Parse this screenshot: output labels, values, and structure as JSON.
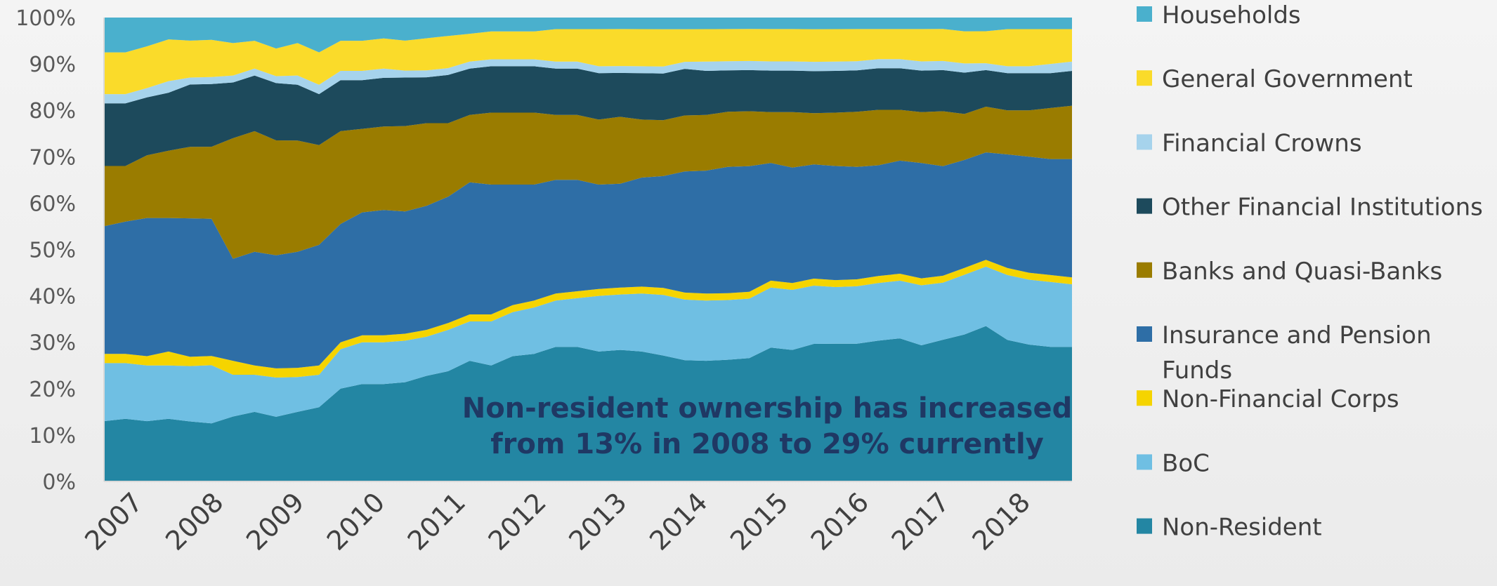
{
  "chart_data": {
    "type": "area",
    "stacked": true,
    "percent": true,
    "x_labels": [
      "2007",
      "2008",
      "2009",
      "2010",
      "2011",
      "2012",
      "2013",
      "2014",
      "2015",
      "2016",
      "2017",
      "2018"
    ],
    "y_ticks": [
      "0%",
      "10%",
      "20%",
      "30%",
      "40%",
      "50%",
      "60%",
      "70%",
      "80%",
      "90%",
      "100%"
    ],
    "ylim": [
      0,
      100
    ],
    "annotation": [
      "Non-resident ownership has increased",
      "from 13% in 2008 to 29% currently"
    ],
    "series": [
      {
        "name": "Non-Resident",
        "color": "#2386a3",
        "values": [
          13,
          13.5,
          13,
          13.5,
          13,
          12.5,
          14,
          15,
          14,
          15,
          16,
          20,
          21,
          21,
          21.5,
          23,
          24,
          26,
          25,
          27,
          27.5,
          29,
          29,
          28,
          28.5,
          28,
          27,
          26,
          26,
          26.5,
          27,
          29,
          28.5,
          29.5,
          29.7,
          30,
          30.5,
          31,
          29.5,
          31,
          32,
          34,
          30.5,
          29.5,
          29,
          29
        ]
      },
      {
        "name": "BoC",
        "color": "#6fbfe3",
        "values": [
          12.5,
          12,
          12,
          11.5,
          12,
          12.5,
          9,
          8,
          8.5,
          7.5,
          7,
          8.5,
          9,
          9,
          9,
          8.5,
          9,
          8.5,
          9.5,
          9.5,
          10,
          10,
          10.5,
          12,
          12,
          12.5,
          13,
          13,
          13,
          13,
          13,
          13,
          13,
          12.5,
          12.2,
          12.5,
          12.5,
          12.5,
          13,
          12.5,
          13,
          13,
          14,
          14,
          14,
          13.5
        ]
      },
      {
        "name": "Non-Financial Corps",
        "color": "#f5d400",
        "values": [
          2,
          2,
          2,
          3,
          2,
          2,
          3,
          2,
          2,
          2,
          2,
          1.5,
          1.5,
          1.5,
          1.5,
          1.5,
          1.5,
          1.5,
          1.5,
          1.5,
          1.5,
          1.5,
          1.5,
          1.5,
          1.5,
          1.5,
          1.5,
          1.5,
          1.5,
          1.5,
          1.5,
          1.5,
          1.5,
          1.5,
          1.5,
          1.5,
          1.5,
          1.5,
          1.5,
          1.5,
          1.5,
          1.5,
          1.5,
          1.5,
          1.5,
          1.5
        ]
      },
      {
        "name": "Insurance and Pension Funds",
        "color": "#2e6ea6",
        "values": [
          27.5,
          28.5,
          29.8,
          28.8,
          30,
          29.5,
          22,
          24.5,
          24.5,
          25,
          26,
          25.5,
          26.5,
          27,
          26.5,
          27,
          27.5,
          28.5,
          28,
          26,
          25,
          24.5,
          24,
          22.5,
          22.5,
          23.5,
          24,
          26,
          26.5,
          27.5,
          27.5,
          25.5,
          25,
          24.5,
          24.6,
          24.5,
          24,
          24.5,
          25,
          24,
          23.5,
          23.5,
          24.5,
          25,
          25,
          25.5
        ]
      },
      {
        "name": "Banks and Quasi-Banks",
        "color": "#9a7c00",
        "values": [
          13,
          12,
          13.5,
          14.5,
          15.5,
          15.5,
          26,
          26,
          24.9,
          24,
          21.5,
          20,
          18,
          18,
          18.5,
          18,
          16,
          14.5,
          15.5,
          15.5,
          15.5,
          14,
          14,
          14,
          14.5,
          12.5,
          12,
          12,
          12,
          12,
          12,
          11,
          12,
          11,
          11.5,
          12,
          12,
          11,
          11,
          12,
          10,
          10,
          9.5,
          10,
          11,
          11.5
        ]
      },
      {
        "name": "Other Financial Institutions",
        "color": "#1d4a5c",
        "values": [
          13.5,
          13.5,
          12.5,
          12.5,
          13.5,
          13.5,
          12,
          12,
          12.4,
          12,
          11,
          11,
          10.5,
          10.5,
          10.5,
          10,
          10.5,
          10,
          10,
          10,
          10,
          10,
          10,
          10,
          9.5,
          10,
          10,
          10,
          9.5,
          9,
          9,
          9,
          9,
          9,
          9,
          9,
          9,
          9,
          9,
          9,
          9,
          8,
          8,
          8,
          7.5,
          7.5
        ]
      },
      {
        "name": "Financial Crowns",
        "color": "#a6d3ec",
        "values": [
          2,
          2,
          2,
          2.5,
          1.5,
          1.5,
          1.5,
          1.5,
          1.5,
          2,
          2,
          2,
          2,
          2,
          1.5,
          1.5,
          1.5,
          1.5,
          1.5,
          1.5,
          1.5,
          1.5,
          1.5,
          1.5,
          1.5,
          1.5,
          1.5,
          1.5,
          2,
          2,
          2,
          2,
          2,
          2,
          2,
          2,
          2,
          2,
          2,
          2,
          2,
          1.5,
          1.5,
          1.5,
          2,
          2
        ]
      },
      {
        "name": "General Government",
        "color": "#fadb2a",
        "values": [
          9,
          9,
          9,
          9,
          8,
          8,
          7,
          6,
          6,
          7,
          7,
          6.5,
          6.5,
          6.5,
          6.5,
          7,
          7,
          6,
          6,
          6,
          6,
          7,
          7,
          8,
          8,
          8,
          8,
          7,
          7,
          7,
          7,
          7,
          7,
          7,
          7,
          7,
          6.5,
          6.5,
          7,
          7,
          7,
          7,
          8,
          8,
          7.5,
          7
        ]
      },
      {
        "name": "Households",
        "color": "#4ab0cd",
        "values": [
          7.5,
          7.5,
          6.2,
          4.7,
          5,
          4.8,
          5.5,
          5,
          6.7,
          5.5,
          7.5,
          5,
          5,
          4.5,
          5,
          4.5,
          4,
          3.5,
          3,
          3,
          3,
          2.5,
          2.5,
          2.5,
          2.5,
          2.5,
          2.5,
          2.5,
          2.5,
          2.5,
          2.5,
          2.5,
          2.5,
          2.5,
          2.5,
          2.5,
          2.5,
          2.5,
          2.5,
          2.5,
          3,
          3,
          2.5,
          2.5,
          2.5,
          2.5
        ]
      }
    ],
    "legend": {
      "placement": "right",
      "order": [
        "Households",
        "General Government",
        "Financial Crowns",
        "Other Financial Institutions",
        "Banks and Quasi-Banks",
        "Insurance and Pension Funds",
        "Non-Financial Corps",
        "BoC",
        "Non-Resident"
      ],
      "label_lines": [
        [
          "Households"
        ],
        [
          "General Government"
        ],
        [
          "Financial Crowns"
        ],
        [
          "Other Financial Institutions"
        ],
        [
          "Banks and Quasi-Banks"
        ],
        [
          "Insurance and Pension",
          "Funds"
        ],
        [
          "Non-Financial Corps"
        ],
        [
          "BoC"
        ],
        [
          "Non-Resident"
        ]
      ]
    }
  }
}
